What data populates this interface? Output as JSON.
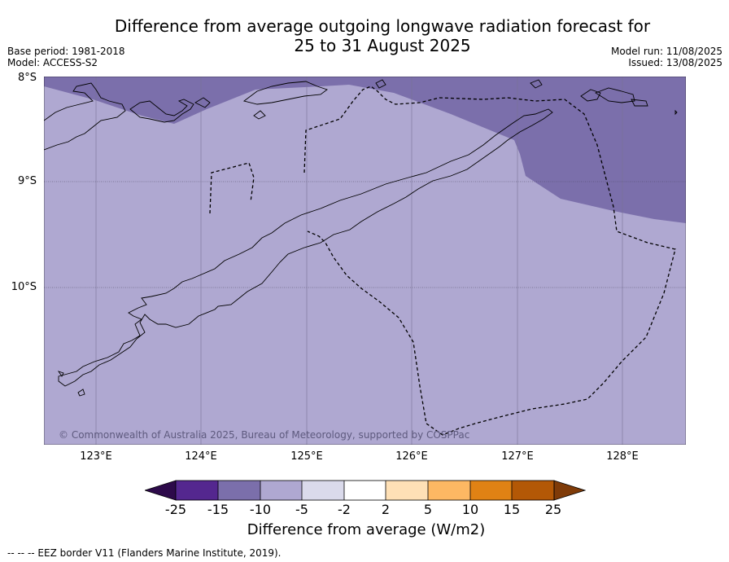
{
  "title_line1": "Difference from average outgoing longwave radiation forecast for",
  "title_line2": "25 to 31 August 2025",
  "meta": {
    "base_period": "Base period: 1981-2018",
    "model": "Model: ACCESS-S2",
    "model_run": "Model run: 11/08/2025",
    "issued": "Issued: 13/08/2025"
  },
  "latitude_labels": [
    "8°S",
    "9°S",
    "10°S"
  ],
  "longitude_labels": [
    "123°E",
    "124°E",
    "125°E",
    "126°E",
    "127°E",
    "128°E"
  ],
  "map_extent": {
    "lon": [
      122.5,
      128.6
    ],
    "lat_south": [
      8.0,
      11.5
    ]
  },
  "copyright": "© Commonwealth of Australia 2025, Bureau of Meteorology, supported by COSPPac",
  "colorbar": {
    "title": "Difference from average (W/m2)",
    "ticks": [
      "-25",
      "-15",
      "-10",
      "-5",
      "-2",
      "2",
      "5",
      "10",
      "15",
      "25"
    ],
    "colors": {
      "below_-25": "#2d0a4a",
      "-25_-15": "#54278f",
      "-15_-10": "#7b6fab",
      "-10_-5": "#afa8d1",
      "-5_-2": "#dadaeb",
      "-2_2": "#ffffff",
      "2_5": "#fee0b6",
      "5_10": "#fdb863",
      "10_15": "#e08214",
      "15_25": "#b35806",
      "above_25": "#7f3b08"
    }
  },
  "footer": "--  --  -- EEZ border V11 (Flanders Marine Institute, 2019)."
}
